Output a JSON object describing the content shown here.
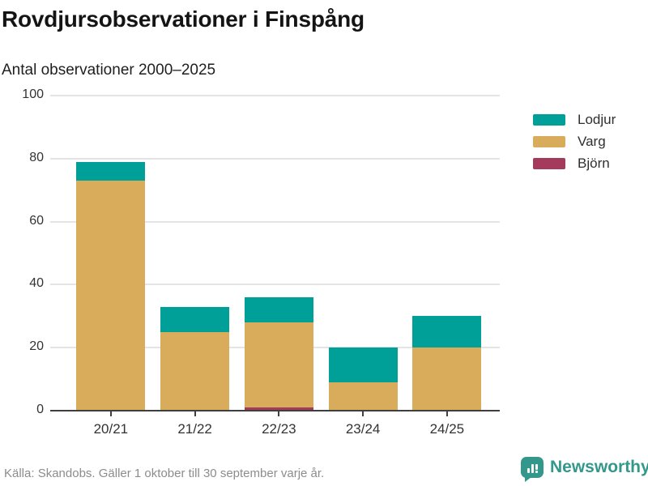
{
  "header": {
    "title": "Rovdjursobservationer i Finspång",
    "subtitle": "Antal observationer 2000–2025"
  },
  "chart_data": {
    "type": "bar",
    "stacked": true,
    "title": "Rovdjursobservationer i Finspång",
    "subtitle": "Antal observationer 2000–2025",
    "categories": [
      "20/21",
      "21/22",
      "22/23",
      "23/24",
      "24/25"
    ],
    "series": [
      {
        "name": "Björn",
        "color": "#a43b5c",
        "values": [
          0,
          0,
          1,
          0,
          0
        ]
      },
      {
        "name": "Varg",
        "color": "#d9ac5c",
        "values": [
          73,
          25,
          27,
          9,
          20
        ]
      },
      {
        "name": "Lodjur",
        "color": "#00a099",
        "values": [
          6,
          8,
          8,
          11,
          10
        ]
      }
    ],
    "totals": [
      79,
      33,
      36,
      20,
      30
    ],
    "legend": [
      {
        "label": "Lodjur",
        "color": "#00a099"
      },
      {
        "label": "Varg",
        "color": "#d9ac5c"
      },
      {
        "label": "Björn",
        "color": "#a43b5c"
      }
    ],
    "legend_position": "right",
    "xlabel": "",
    "ylabel": "",
    "ylim": [
      0,
      100
    ],
    "yticks": [
      0,
      20,
      40,
      60,
      80,
      100
    ],
    "grid": true
  },
  "footer": {
    "source": "Källa: Skandobs. Gäller 1 oktober till 30 september varje år.",
    "brand": "Newsworthy",
    "brand_color": "#33988b"
  }
}
